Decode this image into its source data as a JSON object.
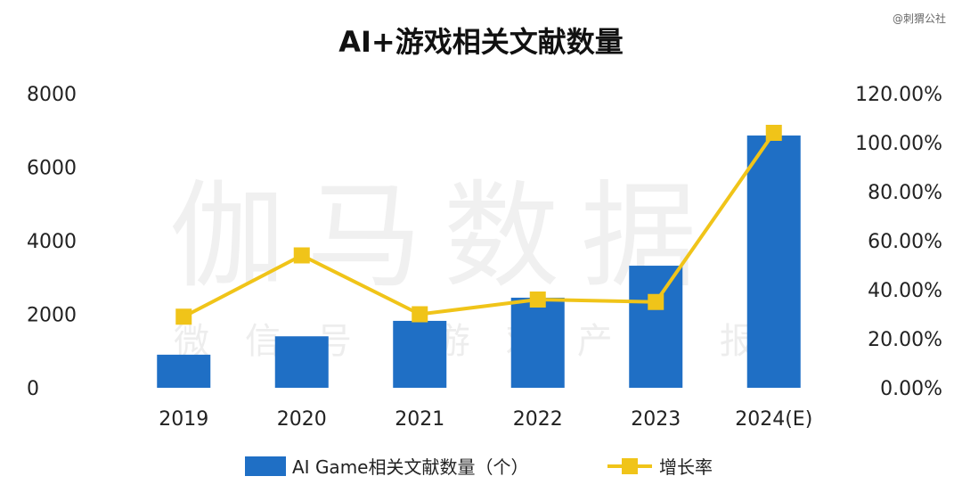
{
  "corner_mark": "@刺猬公社",
  "watermark": {
    "large": "伽马数据",
    "small": "微信号 游戏产业报"
  },
  "chart_data": {
    "type": "bar",
    "title": "AI+游戏相关文献数量",
    "categories": [
      "2019",
      "2020",
      "2021",
      "2022",
      "2023",
      "2024(E)"
    ],
    "series": [
      {
        "name": "AI Game相关文献数量（个）",
        "type": "bar",
        "axis": "left",
        "color": "#1f6fc5",
        "values": [
          900,
          1400,
          1820,
          2450,
          3320,
          6860
        ]
      },
      {
        "name": "增长率",
        "type": "line",
        "axis": "right",
        "color": "#f0c419",
        "values": [
          0.29,
          0.54,
          0.3,
          0.36,
          0.35,
          1.04
        ]
      }
    ],
    "left_axis": {
      "min": 0,
      "max": 8000,
      "ticks": [
        "0",
        "2000",
        "4000",
        "6000",
        "8000"
      ]
    },
    "right_axis": {
      "min": 0,
      "max": 1.2,
      "ticks": [
        "0.00%",
        "20.00%",
        "40.00%",
        "60.00%",
        "80.00%",
        "100.00%",
        "120.00%"
      ]
    },
    "grid": false,
    "legend_position": "bottom"
  }
}
